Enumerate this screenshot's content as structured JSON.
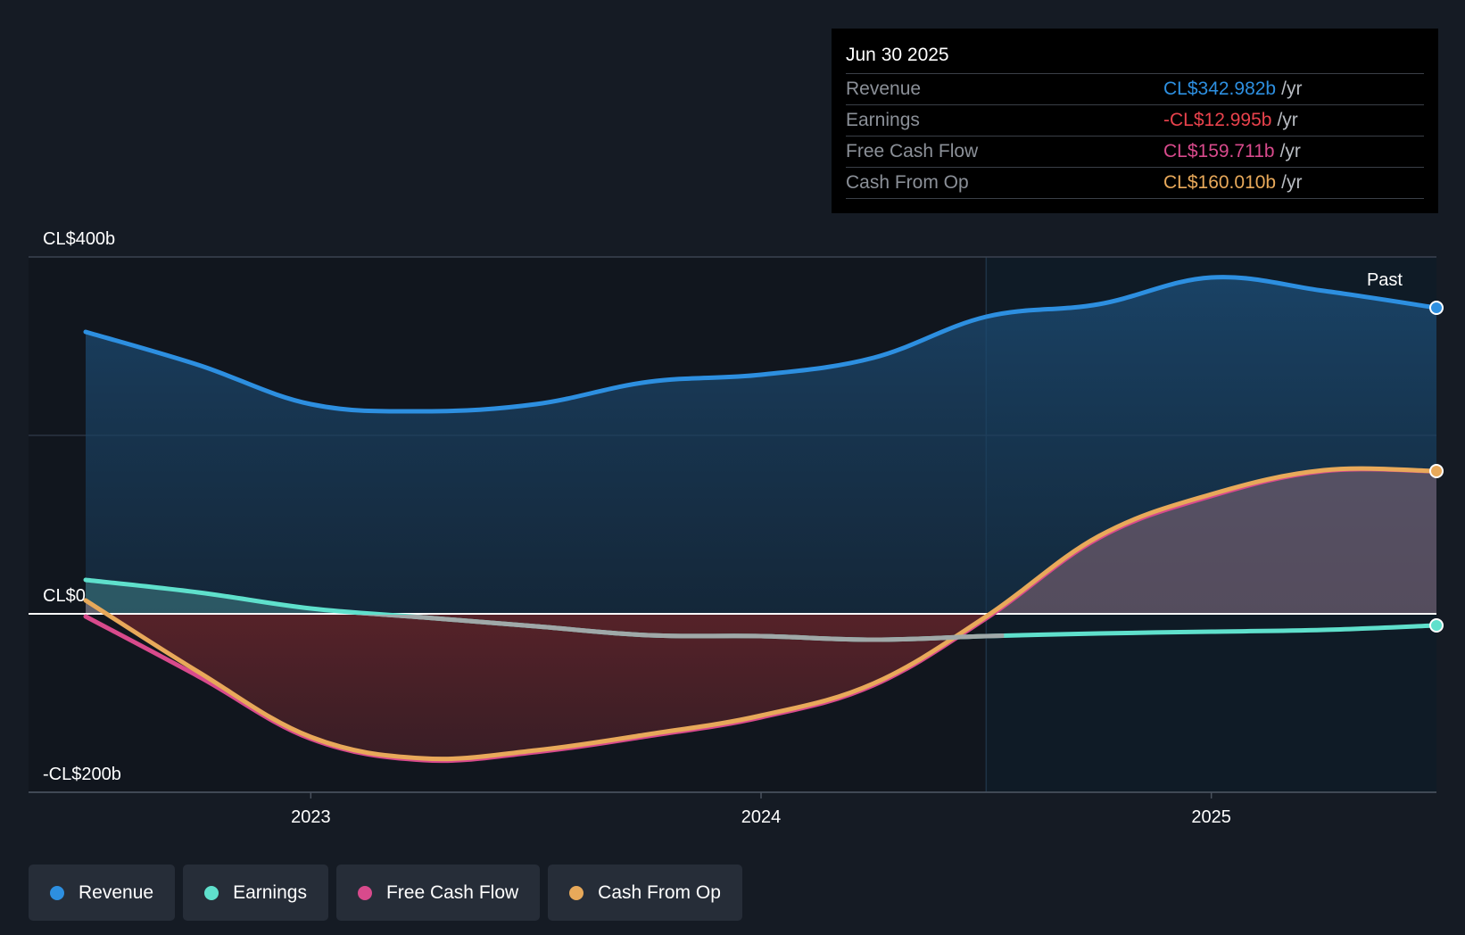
{
  "tooltip": {
    "date": "Jun 30 2025",
    "rows": [
      {
        "label": "Revenue",
        "value": "CL$342.982b",
        "unit": "/yr",
        "color": "#2d8fe0"
      },
      {
        "label": "Earnings",
        "value": "-CL$12.995b",
        "unit": "/yr",
        "color": "#e8424c"
      },
      {
        "label": "Free Cash Flow",
        "value": "CL$159.711b",
        "unit": "/yr",
        "color": "#d84a8c"
      },
      {
        "label": "Cash From Op",
        "value": "CL$160.010b",
        "unit": "/yr",
        "color": "#e8a95a"
      }
    ]
  },
  "legend": [
    {
      "label": "Revenue",
      "color": "#2d8fe0"
    },
    {
      "label": "Earnings",
      "color": "#5fe0cc"
    },
    {
      "label": "Free Cash Flow",
      "color": "#d84a8c"
    },
    {
      "label": "Cash From Op",
      "color": "#e8a95a"
    }
  ],
  "chart_data": {
    "type": "area",
    "title": "",
    "xlabel": "",
    "ylabel": "",
    "y_tick_labels": [
      "CL$400b",
      "CL$0",
      "-CL$200b"
    ],
    "y_ticks": [
      400,
      0,
      -200
    ],
    "ylim": [
      -200,
      400
    ],
    "xlim": [
      2022.5,
      2025.5
    ],
    "x_tick_labels": [
      "2023",
      "2024",
      "2025"
    ],
    "x_ticks": [
      2023,
      2024,
      2025
    ],
    "past_label": "Past",
    "past_start": 2024.5,
    "series": [
      {
        "name": "Revenue",
        "color": "#2d8fe0",
        "x": [
          2022.5,
          2022.75,
          2023.0,
          2023.25,
          2023.5,
          2023.75,
          2024.0,
          2024.25,
          2024.5,
          2024.75,
          2025.0,
          2025.25,
          2025.5
        ],
        "values": [
          316,
          279,
          235,
          227,
          235,
          260,
          268,
          287,
          333,
          347,
          377,
          362,
          343
        ]
      },
      {
        "name": "Earnings",
        "color": "#5fe0cc",
        "x": [
          2022.5,
          2022.75,
          2023.0,
          2023.25,
          2023.5,
          2023.75,
          2024.0,
          2024.25,
          2024.5,
          2024.75,
          2025.0,
          2025.25,
          2025.5
        ],
        "values": [
          38,
          24,
          6,
          -4,
          -14,
          -24,
          -25,
          -29,
          -25,
          -22,
          -20,
          -18,
          -13
        ]
      },
      {
        "name": "Free Cash Flow",
        "color": "#d84a8c",
        "x": [
          2022.5,
          2022.75,
          2023.0,
          2023.25,
          2023.5,
          2023.75,
          2024.0,
          2024.25,
          2024.5,
          2024.75,
          2025.0,
          2025.25,
          2025.5
        ],
        "values": [
          -3,
          -70,
          -140,
          -164,
          -155,
          -137,
          -116,
          -80,
          -5,
          85,
          132,
          160,
          159.7
        ]
      },
      {
        "name": "Cash From Op",
        "color": "#e8a95a",
        "x": [
          2022.5,
          2022.75,
          2023.0,
          2023.25,
          2023.5,
          2023.75,
          2024.0,
          2024.25,
          2024.5,
          2024.75,
          2025.0,
          2025.25,
          2025.5
        ],
        "values": [
          15,
          -65,
          -138,
          -162,
          -153,
          -135,
          -114,
          -78,
          -3,
          87,
          134,
          161,
          160
        ]
      }
    ]
  }
}
